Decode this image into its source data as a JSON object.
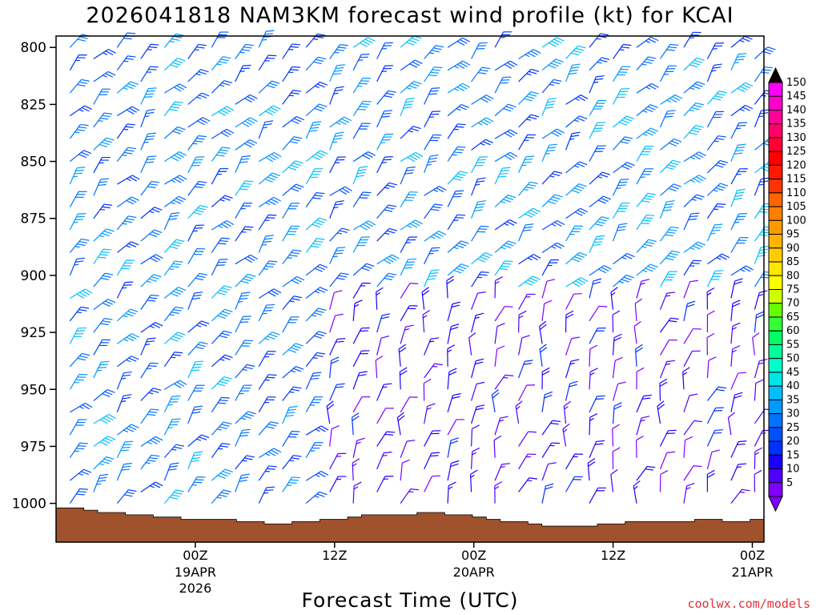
{
  "chart_data": {
    "type": "wind_profile",
    "title": "2026041818 NAM3KM forecast wind profile (kt) for KCAI",
    "xlabel": "Forecast Time (UTC)",
    "credit": "coolwx.com/models",
    "y_ticks": [
      "800",
      "825",
      "850",
      "875",
      "900",
      "925",
      "950",
      "975",
      "1000"
    ],
    "y_range_hpa": [
      795,
      1017
    ],
    "x_range_hours": [
      -6,
      55
    ],
    "x_ticks": [
      {
        "label": "00Z",
        "date": "19APR",
        "year": "2026",
        "hour": 6
      },
      {
        "label": "12Z",
        "date": "",
        "year": "",
        "hour": 18
      },
      {
        "label": "00Z",
        "date": "20APR",
        "year": "",
        "hour": 30
      },
      {
        "label": "12Z",
        "date": "",
        "year": "",
        "hour": 42
      },
      {
        "label": "00Z",
        "date": "21APR",
        "year": "",
        "hour": 54
      }
    ],
    "colorbar": {
      "labels": [
        "150",
        "145",
        "140",
        "135",
        "130",
        "125",
        "120",
        "115",
        "110",
        "105",
        "100",
        "95",
        "90",
        "85",
        "80",
        "75",
        "70",
        "65",
        "60",
        "55",
        "50",
        "45",
        "40",
        "35",
        "30",
        "25",
        "20",
        "15",
        "10",
        "5"
      ],
      "colors": [
        "#ff00ff",
        "#ff00cc",
        "#ff0099",
        "#ff0066",
        "#ff0033",
        "#ff0000",
        "#ff1a00",
        "#ff3300",
        "#ff6600",
        "#ff7f00",
        "#ff9900",
        "#ffb300",
        "#ffcc00",
        "#ffe600",
        "#ffff00",
        "#ccff00",
        "#66ff00",
        "#33ff33",
        "#00ff66",
        "#00ff99",
        "#00ffcc",
        "#00e5e5",
        "#00bfff",
        "#0099ff",
        "#0073ff",
        "#0050ff",
        "#0030ff",
        "#1a00ff",
        "#5000ff",
        "#8000ff"
      ]
    },
    "terrain_color": "#a0522d",
    "terrain_surface_hpa": [
      1002,
      1002,
      1003,
      1004,
      1004,
      1005,
      1005,
      1006,
      1006,
      1007,
      1007,
      1007,
      1007,
      1008,
      1008,
      1009,
      1009,
      1008,
      1008,
      1007,
      1007,
      1006,
      1005,
      1005,
      1005,
      1005,
      1004,
      1004,
      1005,
      1005,
      1006,
      1007,
      1008,
      1008,
      1009,
      1010,
      1010,
      1010,
      1010,
      1009,
      1009,
      1008,
      1008,
      1008,
      1008,
      1008,
      1007,
      1007,
      1008,
      1008,
      1007
    ]
  }
}
